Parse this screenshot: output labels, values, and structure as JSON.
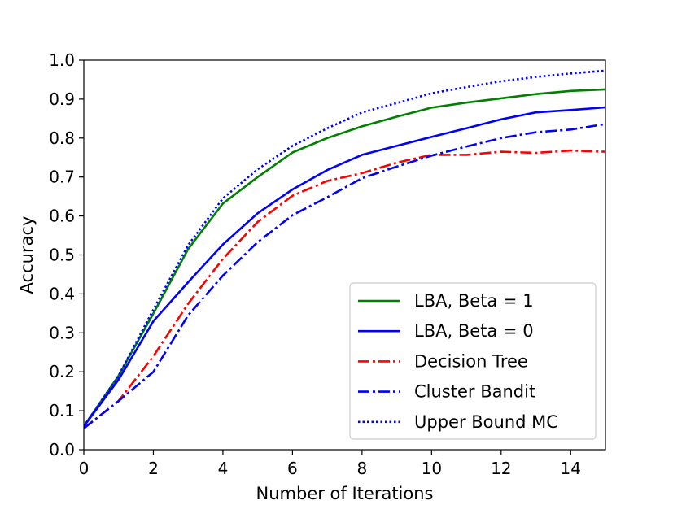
{
  "chart_data": {
    "type": "line",
    "title": "",
    "xlabel": "Number of Iterations",
    "ylabel": "Accuracy",
    "xlim": [
      0,
      15
    ],
    "ylim": [
      0.0,
      1.0
    ],
    "xticks": [
      "0",
      "2",
      "4",
      "6",
      "8",
      "10",
      "12",
      "14"
    ],
    "yticks": [
      "0.0",
      "0.1",
      "0.2",
      "0.3",
      "0.4",
      "0.5",
      "0.6",
      "0.7",
      "0.8",
      "0.9",
      "1.0"
    ],
    "grid": false,
    "legend_position": "lower-right",
    "x": [
      0,
      1,
      2,
      3,
      4,
      5,
      6,
      7,
      8,
      9,
      10,
      11,
      12,
      13,
      14,
      15
    ],
    "series": [
      {
        "name": "LBA, Beta = 1",
        "color": "#008000",
        "style": "solid",
        "values": [
          0.06,
          0.19,
          0.35,
          0.515,
          0.632,
          0.7,
          0.763,
          0.8,
          0.83,
          0.855,
          0.878,
          0.891,
          0.902,
          0.913,
          0.921,
          0.925
        ]
      },
      {
        "name": "LBA, Beta = 0",
        "color": "#0000ff",
        "style": "solid",
        "values": [
          0.06,
          0.18,
          0.33,
          0.43,
          0.527,
          0.607,
          0.668,
          0.718,
          0.757,
          0.78,
          0.803,
          0.825,
          0.848,
          0.866,
          0.872,
          0.879
        ]
      },
      {
        "name": "Decision Tree",
        "color": "#ff0000",
        "style": "dashdot",
        "values": [
          0.055,
          0.125,
          0.24,
          0.375,
          0.49,
          0.585,
          0.652,
          0.69,
          0.71,
          0.737,
          0.757,
          0.757,
          0.765,
          0.762,
          0.768,
          0.765
        ]
      },
      {
        "name": "Cluster Bandit",
        "color": "#0000ff",
        "style": "dashdot",
        "values": [
          0.055,
          0.125,
          0.2,
          0.345,
          0.447,
          0.533,
          0.602,
          0.648,
          0.697,
          0.727,
          0.755,
          0.778,
          0.8,
          0.815,
          0.822,
          0.836
        ]
      },
      {
        "name": "Upper Bound MC",
        "color": "#0000ff",
        "style": "dotted",
        "values": [
          0.06,
          0.19,
          0.36,
          0.525,
          0.645,
          0.72,
          0.78,
          0.825,
          0.866,
          0.89,
          0.915,
          0.931,
          0.946,
          0.957,
          0.966,
          0.973
        ]
      }
    ]
  }
}
